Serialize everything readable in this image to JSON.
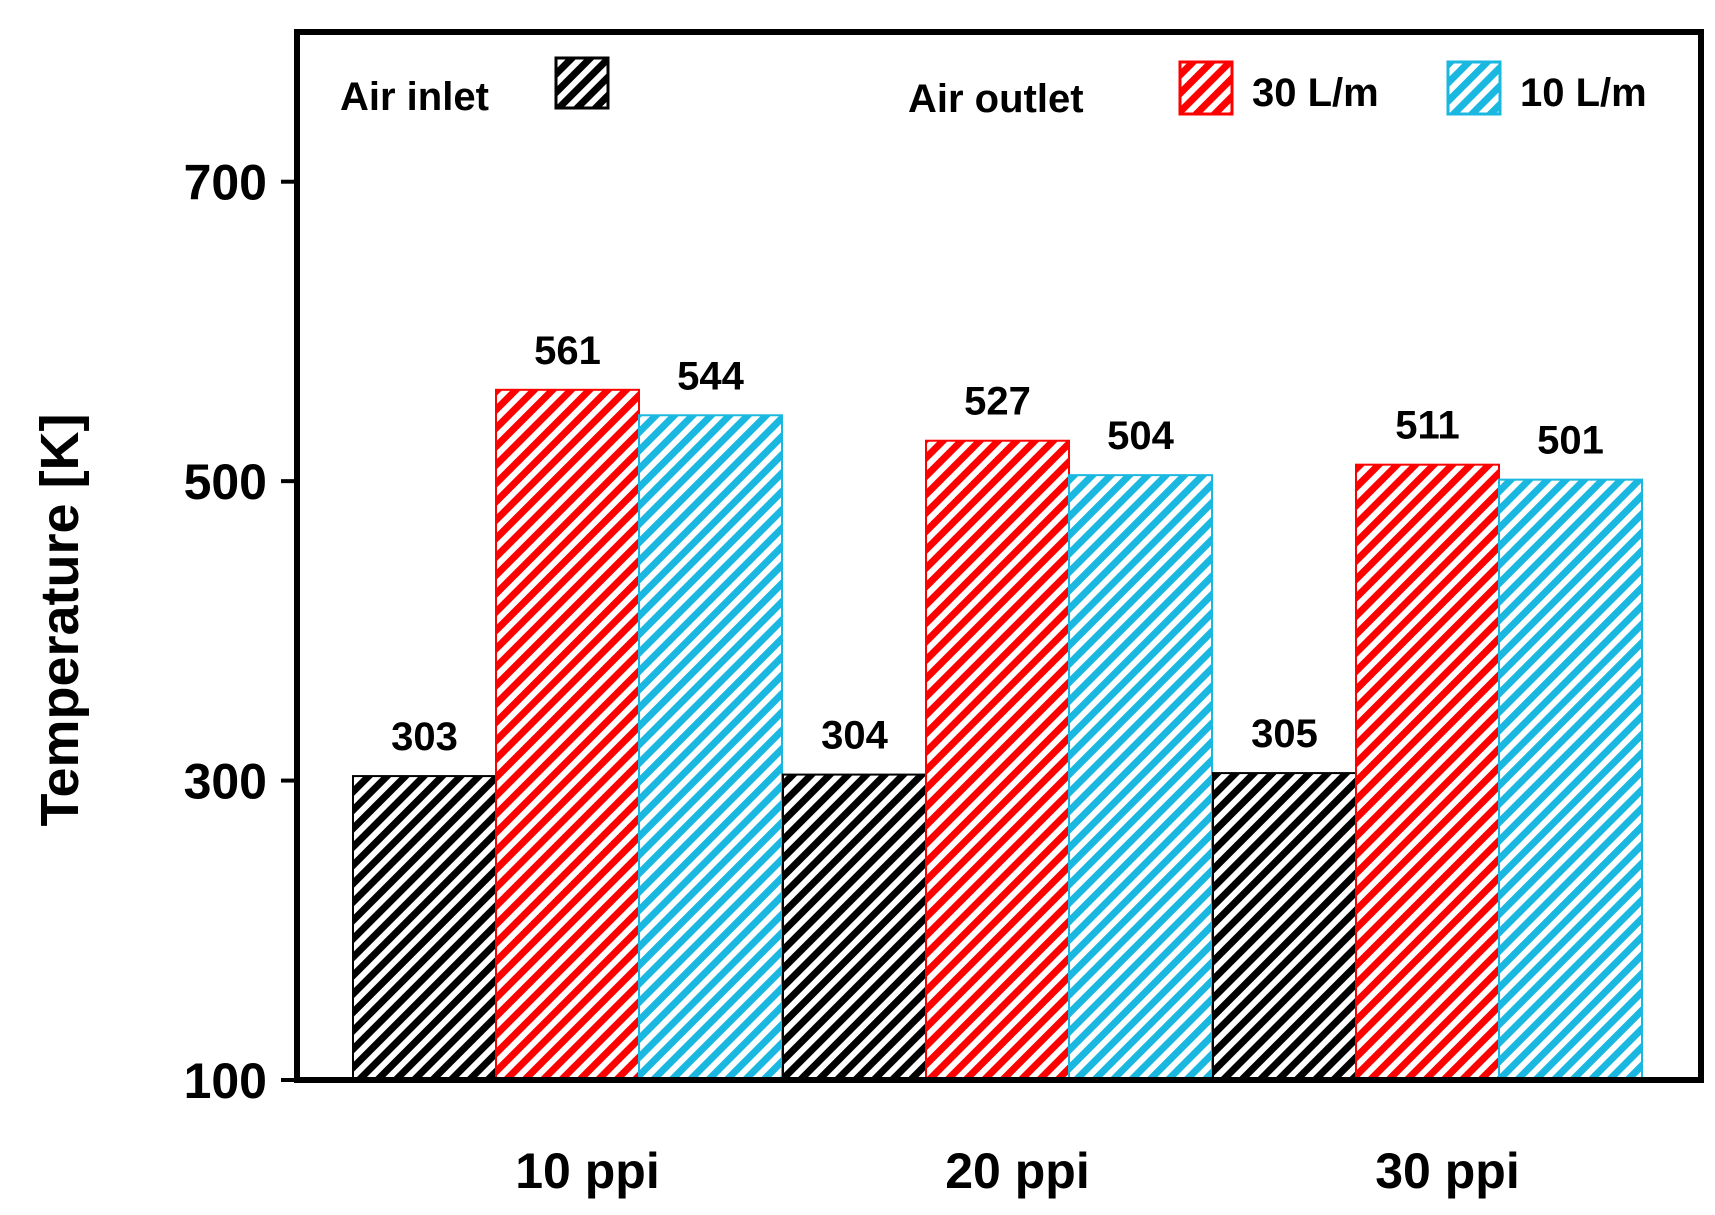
{
  "chart_data": {
    "type": "bar",
    "title": "",
    "xlabel": "",
    "ylabel": "Temperature [K]",
    "ylim": [
      100,
      800
    ],
    "yticks": [
      100,
      300,
      500,
      700
    ],
    "categories": [
      "10 ppi",
      "20 ppi",
      "30 ppi"
    ],
    "series": [
      {
        "name": "Air inlet",
        "color": "#000000",
        "values": [
          303,
          304,
          305
        ]
      },
      {
        "name": "30 L/m",
        "color": "#ff0000",
        "values": [
          561,
          527,
          511
        ]
      },
      {
        "name": "10 L/m",
        "color": "#1ab8e0",
        "values": [
          544,
          504,
          501
        ]
      }
    ],
    "legend": {
      "inlet_title": "Air inlet",
      "outlet_title": "Air outlet",
      "outlet_items": [
        "30 L/m",
        "10 L/m"
      ]
    },
    "hatch": "diagonal"
  }
}
